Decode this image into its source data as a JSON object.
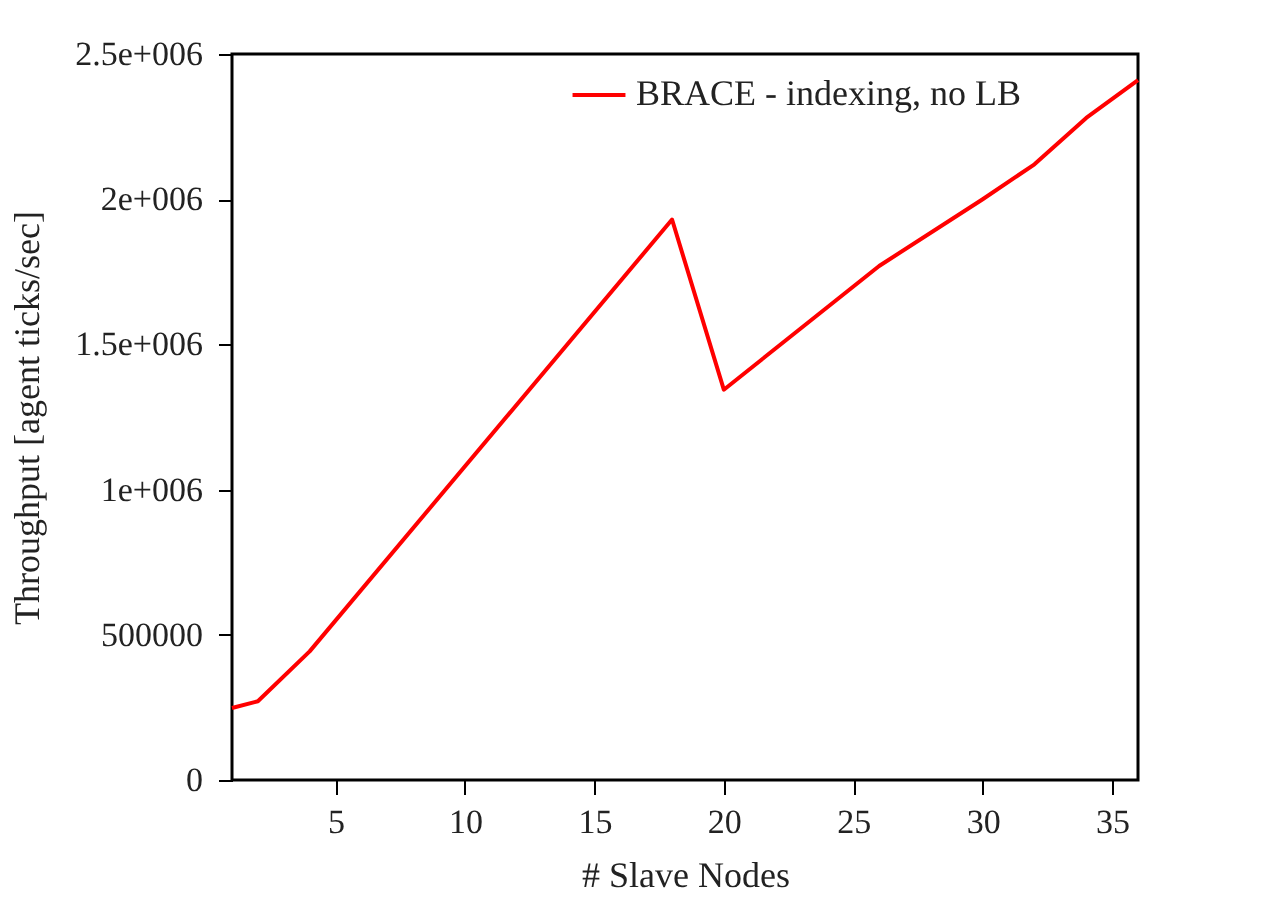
{
  "chart_data": {
    "type": "line",
    "xlabel": "# Slave Nodes",
    "ylabel": "Throughput [agent ticks/sec]",
    "x": [
      1,
      2,
      4,
      18,
      20,
      26,
      30,
      32,
      34,
      36
    ],
    "series": [
      {
        "name": "BRACE - indexing, no LB",
        "color": "#ff0000",
        "values": [
          248000,
          271000,
          443000,
          1930000,
          1344000,
          1770000,
          2000000,
          2120000,
          2280000,
          2410000
        ]
      }
    ],
    "xlim": [
      1,
      36
    ],
    "xticks": [
      5,
      10,
      15,
      20,
      25,
      30,
      35
    ],
    "ylim": [
      0,
      2500000
    ],
    "yticks": [
      0,
      500000,
      {
        "value": 1000000,
        "label": "1e+006"
      },
      {
        "value": 1500000,
        "label": "1.5e+006"
      },
      {
        "value": 2000000,
        "label": "2e+006"
      },
      {
        "value": 2500000,
        "label": "2.5e+006"
      }
    ],
    "grid": false,
    "legend": "top right",
    "marker": "none",
    "line_style": "solid"
  }
}
